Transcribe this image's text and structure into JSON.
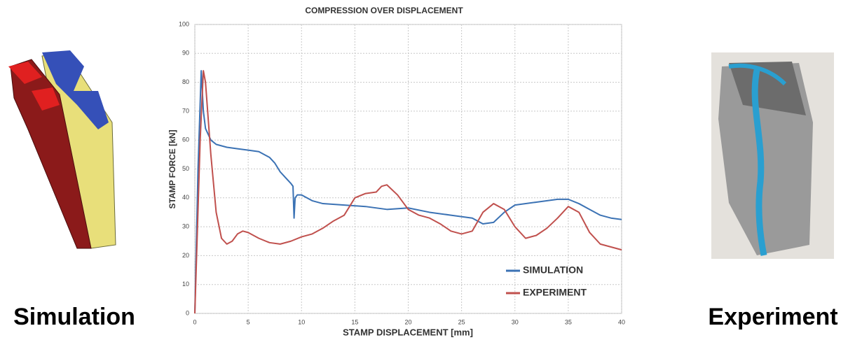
{
  "chart_data": {
    "type": "line",
    "title": "COMPRESSION OVER DISPLACEMENT",
    "xlabel": "STAMP DISPLACEMENT [mm]",
    "ylabel": "STAMP FORCE [kN]",
    "xlim": [
      0,
      40
    ],
    "xticks": [
      0,
      5,
      10,
      15,
      20,
      25,
      30,
      35,
      40
    ],
    "ylim": [
      0,
      100
    ],
    "yticks": [
      0,
      10,
      20,
      30,
      40,
      50,
      60,
      70,
      80,
      90,
      100
    ],
    "grid": true,
    "legend": "lower right",
    "series": [
      {
        "name": "SIMULATION",
        "color": "#3b72b4",
        "x": [
          0,
          0.3,
          0.6,
          0.8,
          1,
          1.5,
          2,
          3,
          4,
          5,
          6,
          7,
          7.5,
          8,
          8.5,
          9,
          9.2,
          9.3,
          9.4,
          9.6,
          10,
          11,
          12,
          14,
          16,
          18,
          20,
          22,
          24,
          26,
          27,
          28,
          29,
          30,
          32,
          34,
          35,
          36,
          37,
          38,
          39,
          40
        ],
        "values": [
          0,
          50,
          84,
          70,
          64,
          60,
          58.5,
          57.5,
          57,
          56.5,
          56,
          54,
          52,
          49,
          47,
          45,
          44,
          33,
          40,
          41,
          41,
          39,
          38,
          37.5,
          37,
          36,
          36.5,
          35,
          34,
          33,
          31,
          31.5,
          35,
          37.5,
          38.5,
          39.5,
          39.5,
          38,
          36,
          34,
          33,
          32.5
        ]
      },
      {
        "name": "EXPERIMENT",
        "color": "#c0504d",
        "x": [
          0,
          0.5,
          0.8,
          1,
          1.5,
          2,
          2.5,
          3,
          3.5,
          4,
          4.5,
          5,
          6,
          7,
          8,
          9,
          10,
          11,
          12,
          13,
          14,
          15,
          16,
          17,
          17.5,
          18,
          19,
          20,
          21,
          22,
          23,
          24,
          25,
          26,
          27,
          28,
          29,
          30,
          31,
          32,
          33,
          34,
          35,
          36,
          37,
          38,
          39,
          40
        ],
        "values": [
          0,
          60,
          84,
          80,
          55,
          35,
          26,
          24,
          25,
          27.5,
          28.5,
          28,
          26,
          24.5,
          24,
          25,
          26.5,
          27.5,
          29.5,
          32,
          34,
          40,
          41.5,
          42,
          44,
          44.5,
          41,
          36,
          34,
          33,
          31,
          28.5,
          27.5,
          28.5,
          35,
          38,
          36,
          30,
          26,
          27,
          29.5,
          33,
          37,
          35,
          28,
          24,
          23,
          22
        ]
      }
    ]
  },
  "side_labels": [
    "Simulation",
    "Experiment"
  ]
}
